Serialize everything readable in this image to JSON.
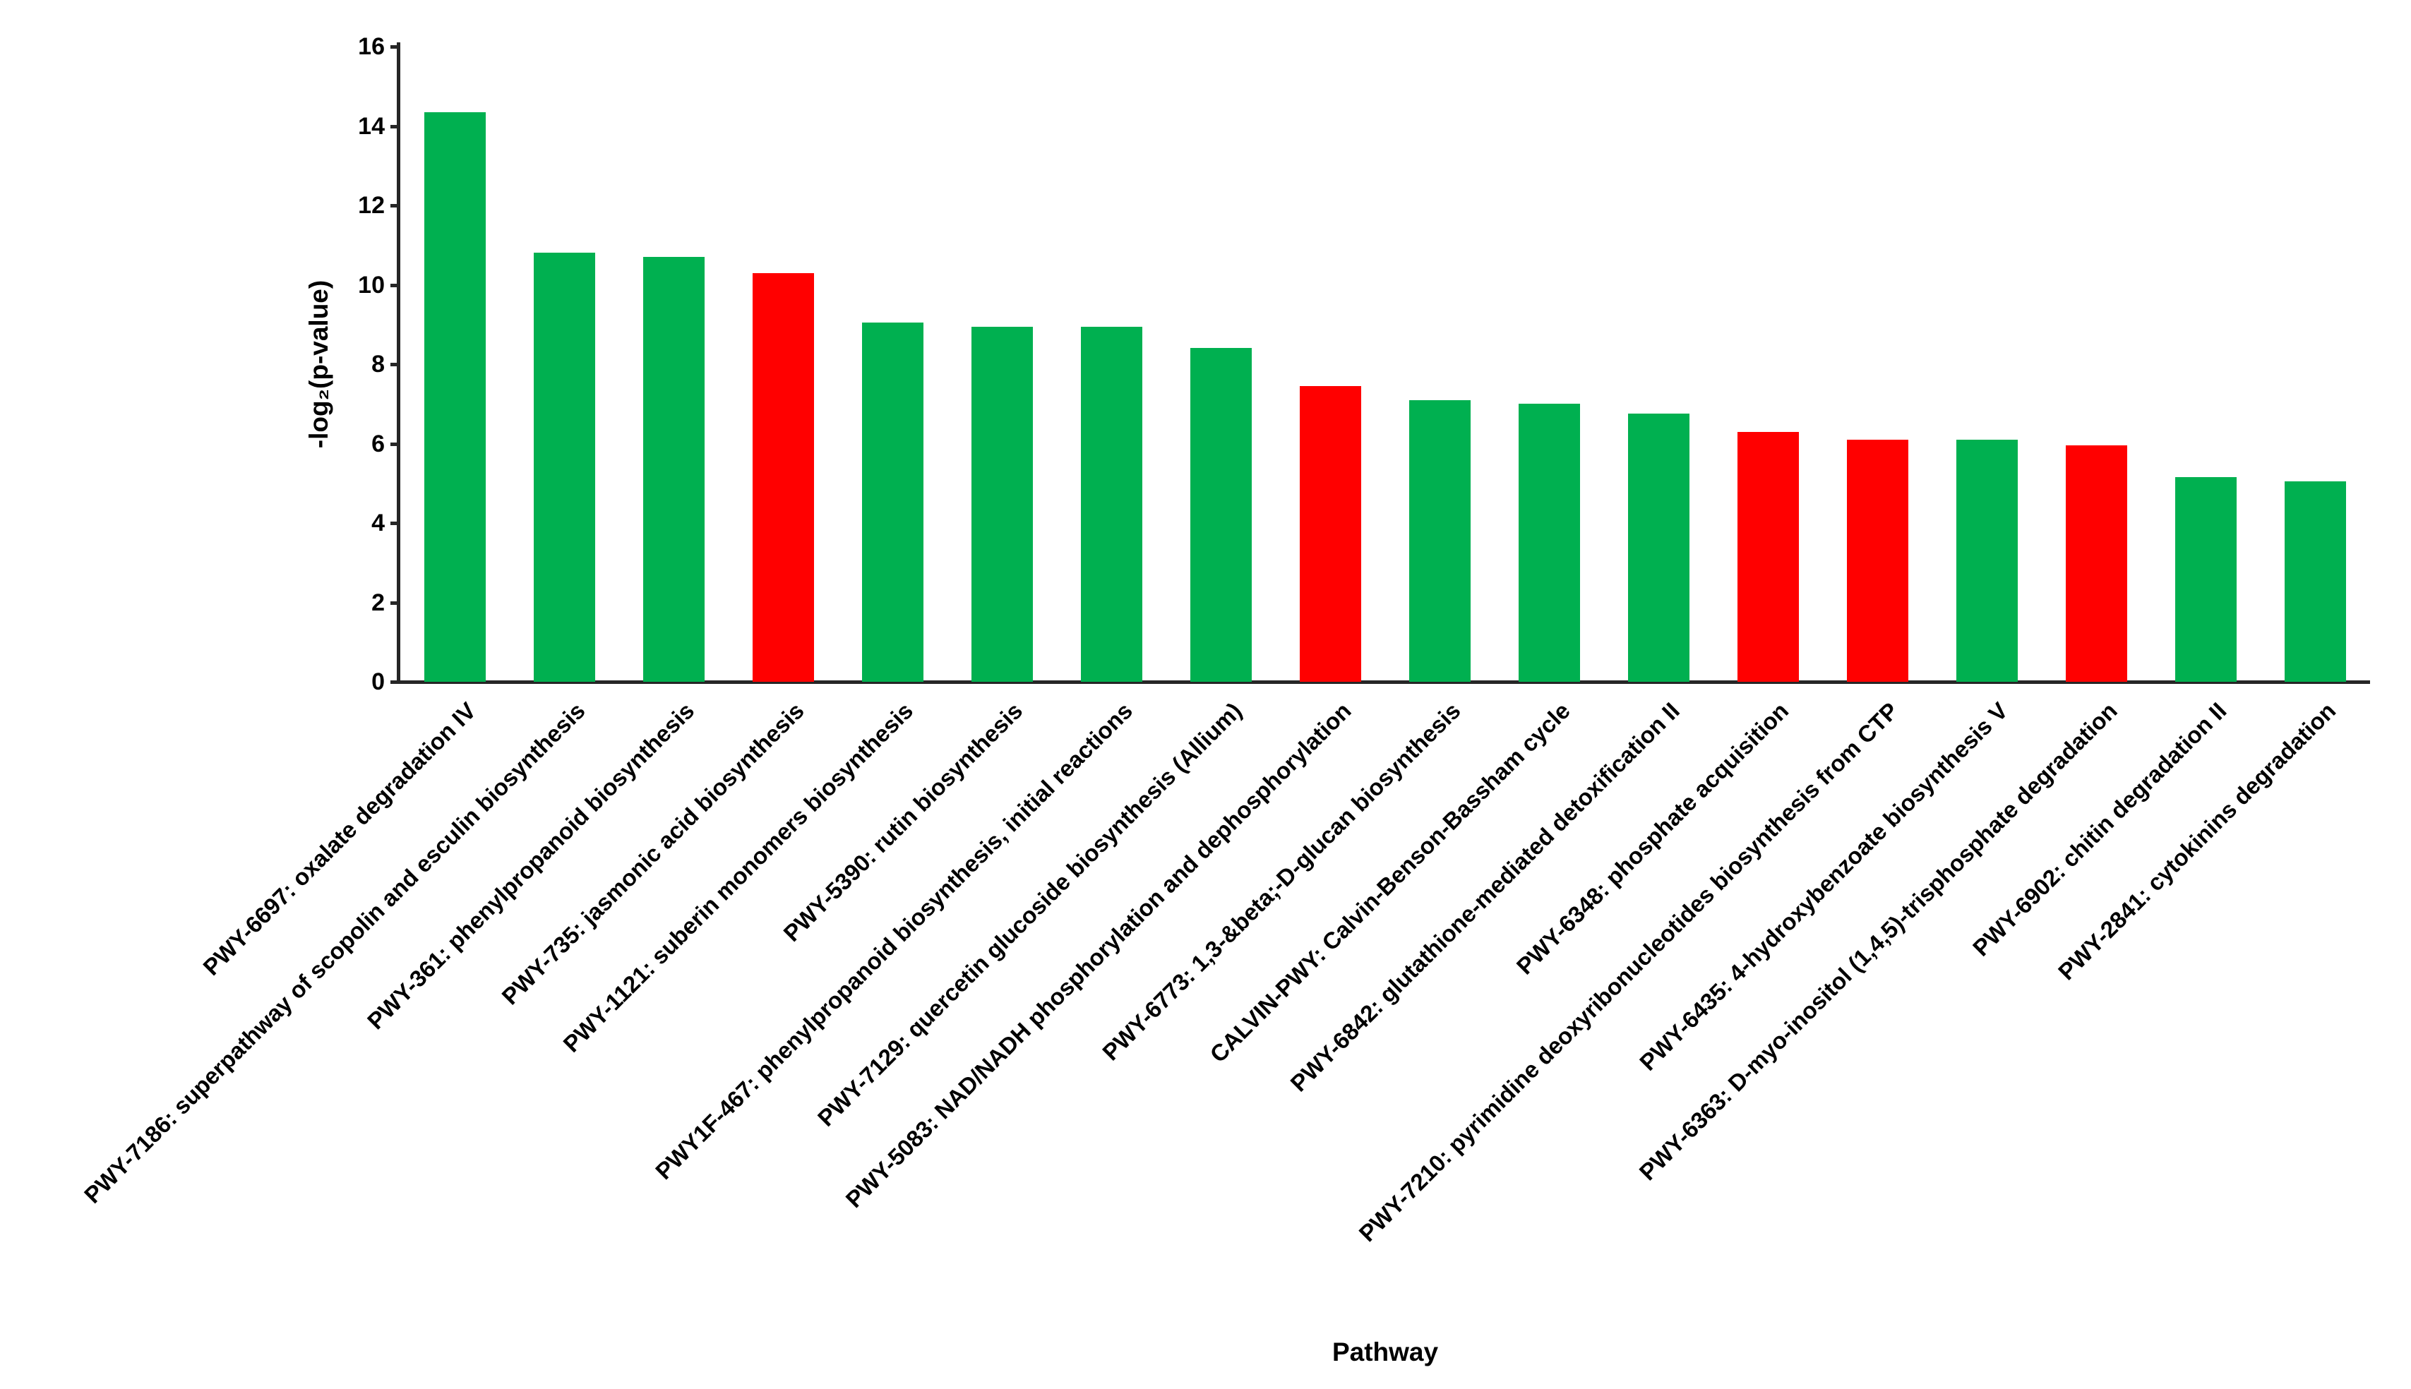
{
  "chart_data": {
    "type": "bar",
    "title": "",
    "xlabel": "Pathway",
    "ylabel": "-log₂(p-value)",
    "ylim": [
      0,
      16
    ],
    "yticks": [
      0,
      2,
      4,
      6,
      8,
      10,
      12,
      14,
      16
    ],
    "grid": false,
    "legend_position": "none",
    "colors": {
      "green_bar": "#00B050",
      "red_bar": "#FF0000",
      "axis": "#262626",
      "text": "#000000"
    },
    "categories": [
      "PWY-6697: oxalate degradation IV",
      "PWY-7186: superpathway of scopolin and esculin biosynthesis",
      "PWY-361: phenylpropanoid biosynthesis",
      "PWY-735: jasmonic acid biosynthesis",
      "PWY-1121: suberin monomers biosynthesis",
      "PWY-5390: rutin biosynthesis",
      "PWY1F-467: phenylpropanoid biosynthesis, initial reactions",
      "PWY-7129: quercetin glucoside biosynthesis (Allium)",
      "PWY-5083: NAD/NADH phosphorylation and dephosphorylation",
      "PWY-6773: 1,3-&beta;-D-glucan biosynthesis",
      "CALVIN-PWY: Calvin-Benson-Bassham cycle",
      "PWY-6842: glutathione-mediated detoxification II",
      "PWY-6348: phosphate acquisition",
      "PWY-7210: pyrimidine deoxyribonucleotides biosynthesis from CTP",
      "PWY-6435: 4-hydroxybenzoate biosynthesis V",
      "PWY-6363: D-myo-inositol (1,4,5)-trisphosphate degradation",
      "PWY-6902: chitin degradation II",
      "PWY-2841: cytokinins degradation"
    ],
    "values": [
      14.35,
      10.8,
      10.7,
      10.3,
      9.05,
      8.95,
      8.95,
      8.4,
      7.45,
      7.1,
      7.0,
      6.75,
      6.3,
      6.1,
      6.1,
      5.95,
      5.15,
      5.05
    ],
    "bar_colors": [
      "#00B050",
      "#00B050",
      "#00B050",
      "#FF0000",
      "#00B050",
      "#00B050",
      "#00B050",
      "#00B050",
      "#FF0000",
      "#00B050",
      "#00B050",
      "#00B050",
      "#FF0000",
      "#FF0000",
      "#00B050",
      "#FF0000",
      "#00B050",
      "#00B050"
    ]
  }
}
